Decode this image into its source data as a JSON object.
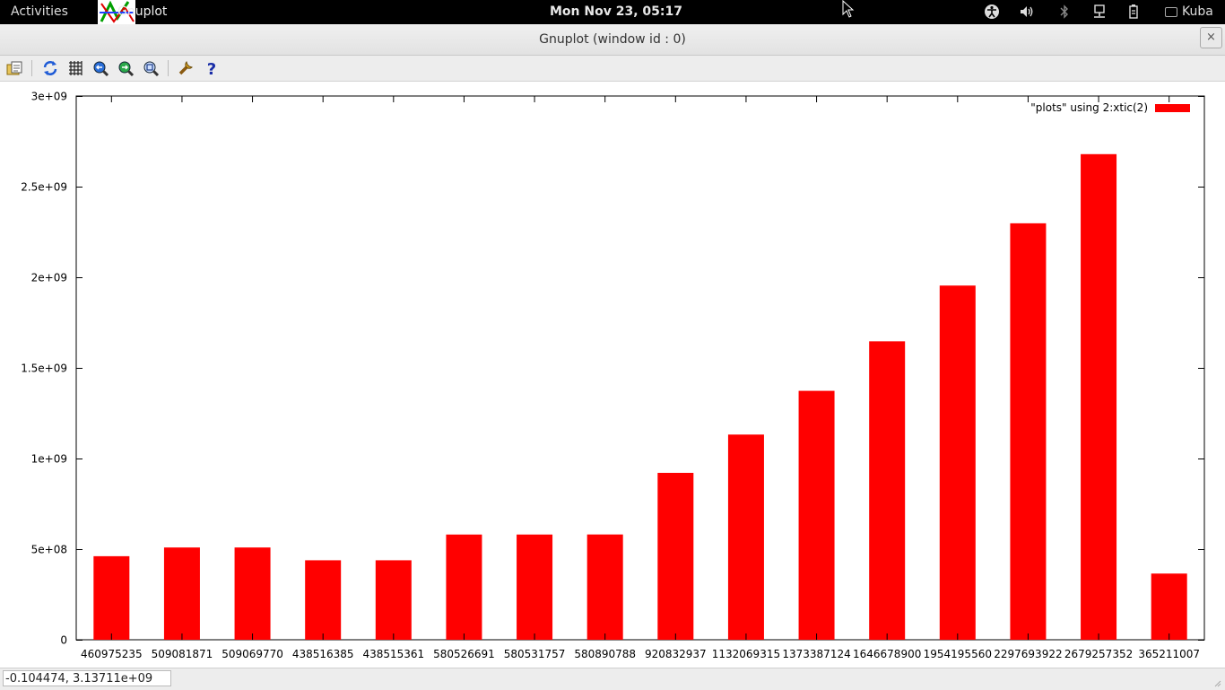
{
  "topbar": {
    "activities": "Activities",
    "app_name": "Gnuplot",
    "clock": "Mon Nov 23, 05:17",
    "user": "Kuba",
    "tray_icons": [
      "accessibility-icon",
      "volume-icon",
      "bluetooth-icon",
      "network-icon",
      "battery-icon"
    ]
  },
  "window": {
    "title": "Gnuplot (window id : 0)",
    "close_label": "×"
  },
  "toolbar": {
    "icons": [
      "export-icon",
      "replot-icon",
      "grid-icon",
      "zoom-previous-icon",
      "zoom-next-icon",
      "unzoom-icon",
      "settings-icon",
      "help-icon"
    ]
  },
  "chart_data": {
    "type": "bar",
    "legend": "\"plots\" using 2:xtic(2)",
    "legend_position": "top-right",
    "bar_color": "#ff0000",
    "categories": [
      "460975235",
      "509081871",
      "509069770",
      "438516385",
      "438515361",
      "580526691",
      "580531757",
      "580890788",
      "920832937",
      "1132069315",
      "1373387124",
      "1646678900",
      "1954195560",
      "2297693922",
      "2679257352",
      "365211007"
    ],
    "values": [
      460975235,
      509081871,
      509069770,
      438516385,
      438515361,
      580526691,
      580531757,
      580890788,
      920832937,
      1132069315,
      1373387124,
      1646678900,
      1954195560,
      2297693922,
      2679257352,
      365211007
    ],
    "ylim": [
      0,
      3000000000
    ],
    "yticks": [
      0,
      500000000,
      1000000000,
      1500000000,
      2000000000,
      2500000000,
      3000000000
    ],
    "ytick_labels": [
      "0",
      "5e+08",
      "1e+09",
      "1.5e+09",
      "2e+09",
      "2.5e+09",
      "3e+09"
    ],
    "grid": false
  },
  "status": {
    "coords": "-0.104474,  3.13711e+09"
  }
}
